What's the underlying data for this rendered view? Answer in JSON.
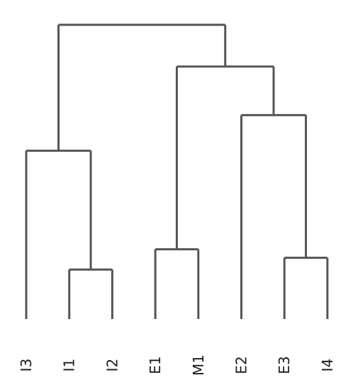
{
  "chart_data": {
    "type": "dendrogram",
    "title": "",
    "leaves": [
      "I3",
      "I1",
      "I2",
      "E1",
      "M1",
      "E2",
      "E3",
      "I4"
    ],
    "merges": [
      {
        "children": [
          "I1",
          "I2"
        ],
        "height": 0.168
      },
      {
        "children": [
          "E3",
          "I4"
        ],
        "height": 0.208
      },
      {
        "children": [
          "E1",
          "M1"
        ],
        "height": 0.237
      },
      {
        "children": [
          "I3",
          "I1+I2"
        ],
        "height": 0.572
      },
      {
        "children": [
          "E2",
          "E3+I4"
        ],
        "height": 0.693
      },
      {
        "children": [
          "E1+M1",
          "E2+E3+I4"
        ],
        "height": 0.858
      },
      {
        "children": [
          "I3+I1+I2",
          "E1+M1+E2+E3+I4"
        ],
        "height": 1.0
      }
    ],
    "color": "#555555",
    "grid": false,
    "legend": "none"
  }
}
